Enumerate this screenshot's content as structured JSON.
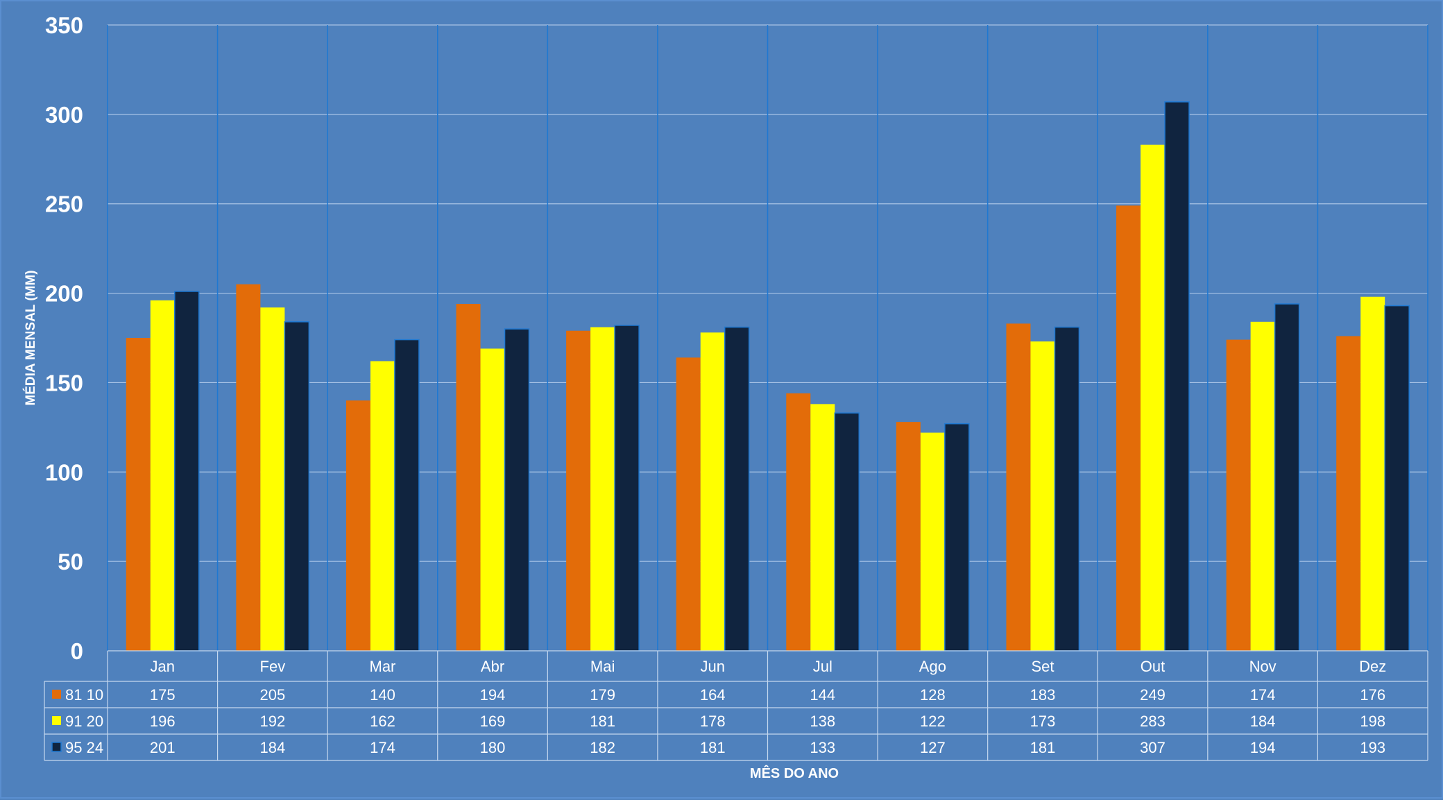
{
  "chart_data": {
    "type": "bar",
    "categories": [
      "Jan",
      "Fev",
      "Mar",
      "Abr",
      "Mai",
      "Jun",
      "Jul",
      "Ago",
      "Set",
      "Out",
      "Nov",
      "Dez"
    ],
    "series": [
      {
        "name": "81 10",
        "color": "#e36c09",
        "values": [
          175,
          205,
          140,
          194,
          179,
          164,
          144,
          128,
          183,
          249,
          174,
          176
        ]
      },
      {
        "name": "91 20",
        "color": "#ffff00",
        "values": [
          196,
          192,
          162,
          169,
          181,
          178,
          138,
          122,
          173,
          283,
          184,
          198
        ]
      },
      {
        "name": "95 24",
        "color": "#10243f",
        "values": [
          201,
          184,
          174,
          180,
          182,
          181,
          133,
          127,
          181,
          307,
          194,
          193
        ]
      }
    ],
    "ylabel": "MÉDIA MENSAL (MM)",
    "xlabel": "MÊS DO ANO",
    "ylim": [
      0,
      350
    ],
    "yticks": [
      0,
      50,
      100,
      150,
      200,
      250,
      300,
      350
    ],
    "grid": true,
    "legend": "data-table",
    "colors": {
      "background": "#4f81bd",
      "gridline": "#a9c4e6",
      "category_divider": "#1f78d1",
      "text": "#ffffff"
    }
  }
}
